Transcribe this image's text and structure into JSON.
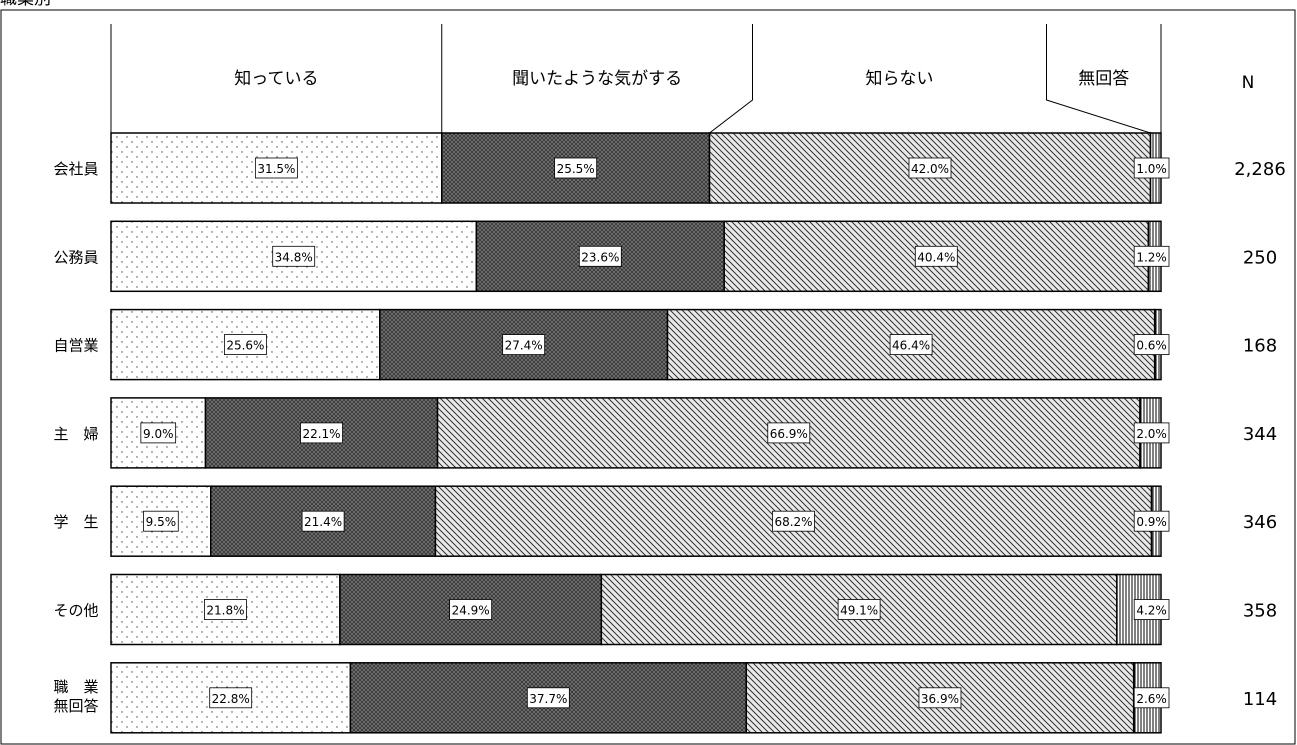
{
  "chart_data": {
    "type": "bar",
    "orientation": "horizontal",
    "stacked": true,
    "percent": true,
    "title": "職業別",
    "n_header": "N",
    "series": [
      {
        "name": "知っている",
        "pattern": "dots",
        "values": [
          31.5,
          34.8,
          25.6,
          9.0,
          9.5,
          21.8,
          22.8
        ]
      },
      {
        "name": "聞いたような気がする",
        "pattern": "dark-crosshatch",
        "values": [
          25.5,
          23.6,
          27.4,
          22.1,
          21.4,
          24.9,
          37.7
        ]
      },
      {
        "name": "知らない",
        "pattern": "diagonal-hatch",
        "values": [
          42.0,
          40.4,
          46.4,
          66.9,
          68.2,
          49.1,
          36.9
        ]
      },
      {
        "name": "無回答",
        "pattern": "vertical-lines",
        "values": [
          1.0,
          1.2,
          0.6,
          2.0,
          0.9,
          4.2,
          2.6
        ]
      }
    ],
    "categories": [
      {
        "label": [
          "会社員"
        ],
        "n": "2,286"
      },
      {
        "label": [
          "公務員"
        ],
        "n": "250"
      },
      {
        "label": [
          "自営業"
        ],
        "n": "168"
      },
      {
        "label": [
          "主　婦"
        ],
        "n": "344"
      },
      {
        "label": [
          "学　生"
        ],
        "n": "346"
      },
      {
        "label": [
          "その他"
        ],
        "n": "358"
      },
      {
        "label": [
          "職　業",
          "無回答"
        ],
        "n": "114"
      }
    ],
    "legend": "top",
    "xlim": [
      0,
      100
    ]
  }
}
